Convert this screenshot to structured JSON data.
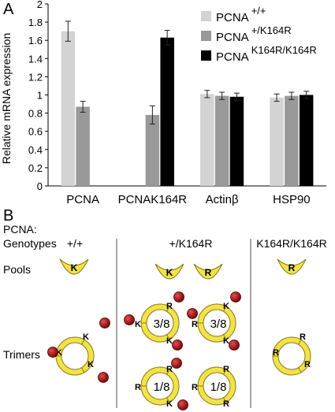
{
  "panels": {
    "a_letter": "A",
    "b_letter": "B"
  },
  "chart_data": {
    "type": "bar",
    "title": "",
    "ylabel": "Relative mRNA expression",
    "xlabel": "",
    "ylim": [
      0,
      2
    ],
    "yticks": [
      0,
      0.2,
      0.4,
      0.6,
      0.8,
      1,
      1.2,
      1.4,
      1.6,
      1.8,
      2
    ],
    "ytick_labels": [
      "0",
      "0.2",
      "0.4",
      "0.6",
      "0.8",
      "1",
      "1.2",
      "1.4",
      "1.6",
      "1.8",
      "2"
    ],
    "categories": [
      "PCNA",
      "PCNAK164R",
      "Actinβ",
      "HSP90"
    ],
    "grid": false,
    "legend_position": "top-right",
    "series": [
      {
        "name_base": "PCNA",
        "name_sup": "+/+",
        "color": "#d3d3d3",
        "values": [
          1.7,
          0.0,
          1.01,
          0.97
        ],
        "errors": [
          0.11,
          0.0,
          0.04,
          0.04
        ]
      },
      {
        "name_base": "PCNA",
        "name_sup": "+/K164R",
        "color": "#999999",
        "values": [
          0.87,
          0.78,
          0.99,
          0.99
        ],
        "errors": [
          0.06,
          0.1,
          0.04,
          0.04
        ]
      },
      {
        "name_base": "PCNA",
        "name_sup": "K164R/K164R",
        "color": "#000000",
        "values": [
          0.0,
          1.63,
          0.98,
          1.0
        ],
        "errors": [
          0.0,
          0.08,
          0.04,
          0.04
        ]
      }
    ]
  },
  "diagram": {
    "pcna_label": "PCNA:",
    "genotypes_label": "Genotypes",
    "columns": [
      "+/+",
      "+/K164R",
      "K164R/K164R"
    ],
    "pools_label": "Pools",
    "trimers_label": "Trimers",
    "monomer_k": "K",
    "monomer_r": "R",
    "fraction_3_8": "3/8",
    "fraction_1_8": "1/8",
    "monomer_fill": "#f2e24a",
    "monomer_stroke": "#8a7a10",
    "ubiquitin_color": "#b01010"
  }
}
